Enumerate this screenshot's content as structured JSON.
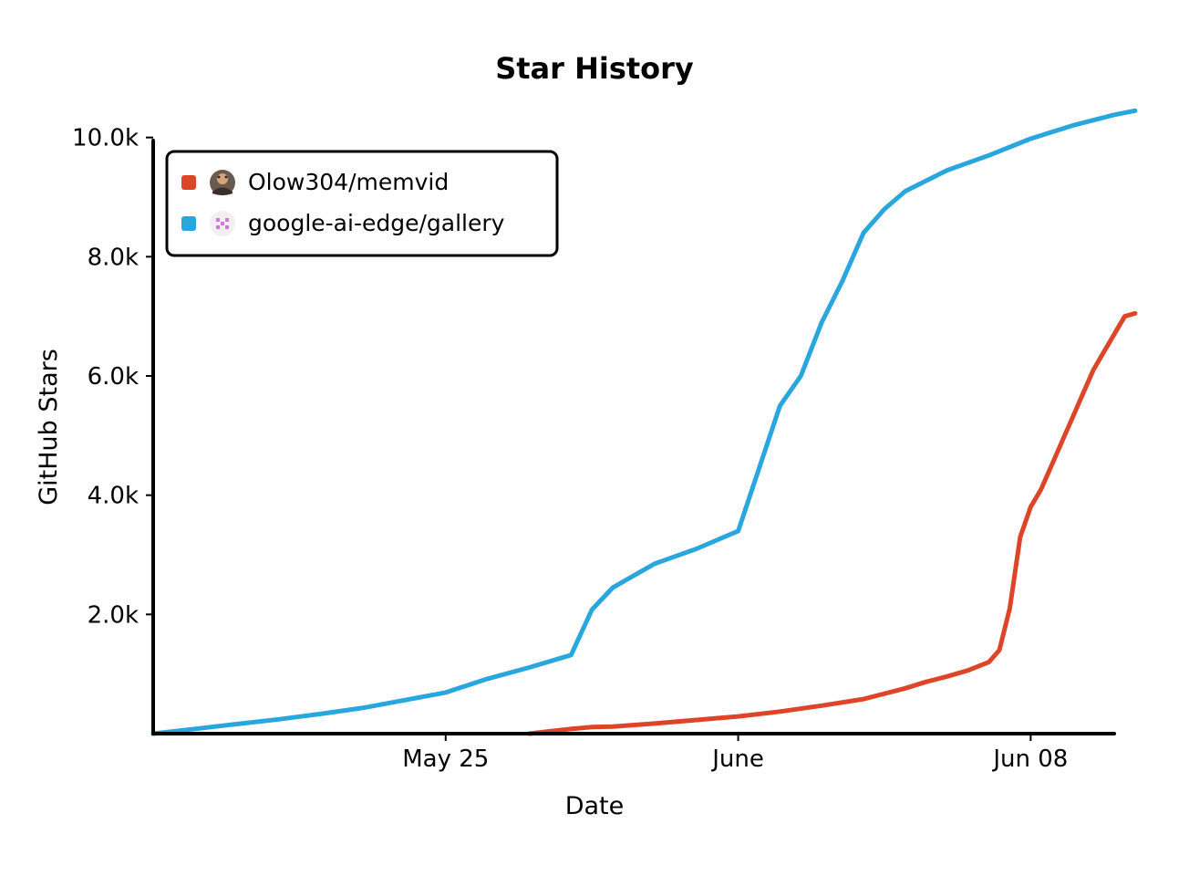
{
  "chart_data": {
    "type": "line",
    "title": "Star History",
    "xlabel": "Date",
    "ylabel": "GitHub Stars",
    "x_axis": {
      "type": "date",
      "range": [
        "2025-05-18",
        "2025-06-10"
      ],
      "ticks": [
        {
          "date": "2025-05-25",
          "label": "May 25"
        },
        {
          "date": "2025-06-01",
          "label": "June"
        },
        {
          "date": "2025-06-08",
          "label": "Jun 08"
        }
      ]
    },
    "y_axis": {
      "range": [
        0,
        10500
      ],
      "ticks": [
        {
          "value": 2000,
          "label": "2.0k"
        },
        {
          "value": 4000,
          "label": "4.0k"
        },
        {
          "value": 6000,
          "label": "6.0k"
        },
        {
          "value": 8000,
          "label": "8.0k"
        },
        {
          "value": 10000,
          "label": "10.0k"
        }
      ]
    },
    "grid": false,
    "legend_position": "top-left",
    "series": [
      {
        "name": "Olow304/memvid",
        "color": "#dd4528",
        "icon": "user-avatar-icon",
        "points": [
          [
            "2025-05-27",
            0
          ],
          [
            "2025-05-27T12:00",
            40
          ],
          [
            "2025-05-28",
            80
          ],
          [
            "2025-05-28T12:00",
            110
          ],
          [
            "2025-05-29",
            120
          ],
          [
            "2025-05-30",
            170
          ],
          [
            "2025-05-31",
            230
          ],
          [
            "2025-06-01",
            290
          ],
          [
            "2025-06-02",
            370
          ],
          [
            "2025-06-03",
            470
          ],
          [
            "2025-06-04",
            580
          ],
          [
            "2025-06-05",
            760
          ],
          [
            "2025-06-05T12:00",
            870
          ],
          [
            "2025-06-06",
            960
          ],
          [
            "2025-06-06T12:00",
            1060
          ],
          [
            "2025-06-07",
            1200
          ],
          [
            "2025-06-07T06:00",
            1400
          ],
          [
            "2025-06-07T12:00",
            2100
          ],
          [
            "2025-06-07T18:00",
            3300
          ],
          [
            "2025-06-08",
            3800
          ],
          [
            "2025-06-08T06:00",
            4100
          ],
          [
            "2025-06-08T12:00",
            4500
          ],
          [
            "2025-06-08T18:00",
            4900
          ],
          [
            "2025-06-09",
            5300
          ],
          [
            "2025-06-09T06:00",
            5700
          ],
          [
            "2025-06-09T12:00",
            6100
          ],
          [
            "2025-06-09T18:00",
            6400
          ],
          [
            "2025-06-10",
            6700
          ],
          [
            "2025-06-10T06:00",
            7000
          ],
          [
            "2025-06-10T12:00",
            7050
          ]
        ]
      },
      {
        "name": "google-ai-edge/gallery",
        "color": "#28a6dd",
        "icon": "org-logo-icon",
        "points": [
          [
            "2025-05-18",
            0
          ],
          [
            "2025-05-19",
            80
          ],
          [
            "2025-05-20",
            160
          ],
          [
            "2025-05-21",
            240
          ],
          [
            "2025-05-22",
            330
          ],
          [
            "2025-05-23",
            430
          ],
          [
            "2025-05-24",
            560
          ],
          [
            "2025-05-25",
            690
          ],
          [
            "2025-05-26",
            920
          ],
          [
            "2025-05-27",
            1110
          ],
          [
            "2025-05-28",
            1320
          ],
          [
            "2025-05-28T12:00",
            2080
          ],
          [
            "2025-05-29",
            2450
          ],
          [
            "2025-05-30",
            2850
          ],
          [
            "2025-05-31",
            3100
          ],
          [
            "2025-06-01",
            3400
          ],
          [
            "2025-06-01T12:00",
            4450
          ],
          [
            "2025-06-02",
            5500
          ],
          [
            "2025-06-02T12:00",
            6000
          ],
          [
            "2025-06-03",
            6900
          ],
          [
            "2025-06-03T12:00",
            7600
          ],
          [
            "2025-06-04",
            8400
          ],
          [
            "2025-06-04T12:00",
            8800
          ],
          [
            "2025-06-05",
            9100
          ],
          [
            "2025-06-06",
            9450
          ],
          [
            "2025-06-07",
            9700
          ],
          [
            "2025-06-08",
            9980
          ],
          [
            "2025-06-09",
            10200
          ],
          [
            "2025-06-10",
            10380
          ],
          [
            "2025-06-10T12:00",
            10450
          ]
        ]
      }
    ]
  }
}
